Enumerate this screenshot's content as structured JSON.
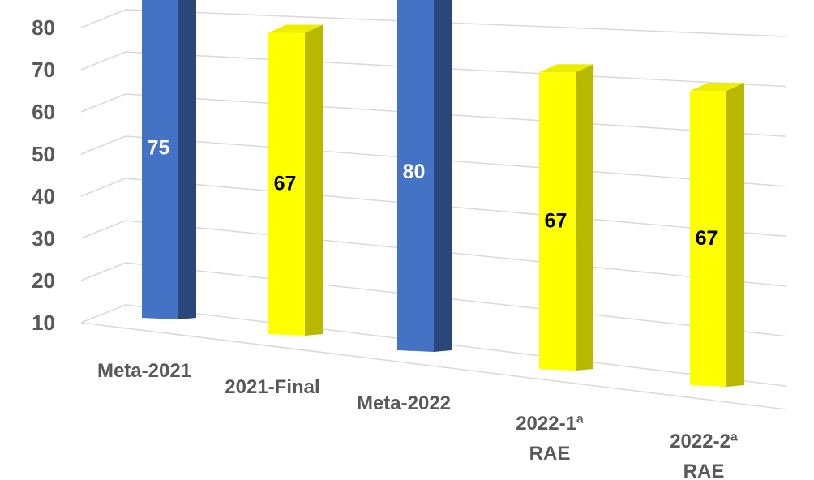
{
  "chart_data": {
    "type": "bar",
    "title": "",
    "xlabel": "",
    "ylabel": "",
    "categories": [
      "Meta-2021",
      "2021-Final",
      "Meta-2022",
      "2022-1ª RAE",
      "2022-2ª RAE"
    ],
    "category_lines": [
      [
        "Meta-2021"
      ],
      [
        "2021-Final"
      ],
      [
        "Meta-2022"
      ],
      [
        "2022-1ª",
        "RAE"
      ],
      [
        "2022-2ª",
        "RAE"
      ]
    ],
    "values": [
      75,
      67,
      80,
      67,
      67
    ],
    "data_labels": [
      "75",
      "67",
      "80",
      "67",
      "67"
    ],
    "ylim": [
      10,
      80
    ],
    "yticks": [
      10,
      20,
      30,
      40,
      50,
      60,
      70,
      80
    ],
    "ytick_labels": [
      "10",
      "20",
      "30",
      "40",
      "50",
      "60",
      "70",
      "80"
    ],
    "grid": true,
    "style": "3d-perspective",
    "bar_colors": [
      "#4472c4",
      "#ffff00",
      "#4472c4",
      "#ffff00",
      "#ffff00"
    ],
    "label_colors": [
      "#ffffff",
      "#000000",
      "#ffffff",
      "#000000",
      "#000000"
    ]
  }
}
